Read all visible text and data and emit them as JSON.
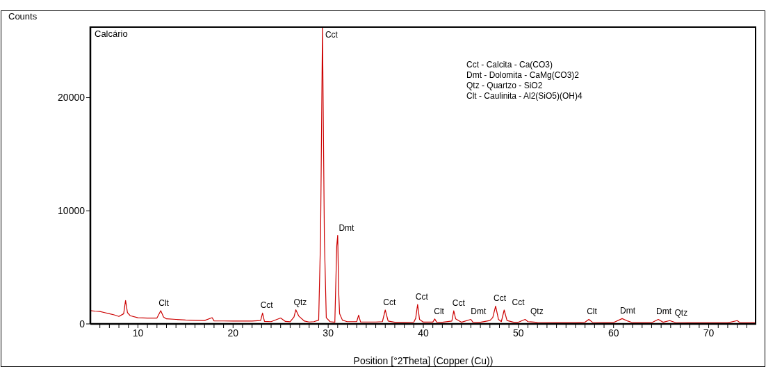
{
  "chart_data": {
    "type": "line",
    "title": "Calcário",
    "xlabel": "Position [°2Theta] (Copper (Cu))",
    "ylabel": "Counts",
    "xlim": [
      5,
      75
    ],
    "ylim": [
      0,
      26300
    ],
    "xticks": [
      {
        "value": 6,
        "label": null
      },
      {
        "value": 7,
        "label": null
      },
      {
        "value": 8,
        "label": null
      },
      {
        "value": 9,
        "label": null
      },
      10,
      {
        "value": 11,
        "label": null
      },
      {
        "value": 12,
        "label": null
      },
      {
        "value": 13,
        "label": null
      },
      {
        "value": 14,
        "label": null
      },
      {
        "value": 15,
        "label": null
      },
      {
        "value": 16,
        "label": null
      },
      {
        "value": 17,
        "label": null
      },
      {
        "value": 18,
        "label": null
      },
      {
        "value": 19,
        "label": null
      },
      20,
      {
        "value": 21,
        "label": null
      },
      {
        "value": 22,
        "label": null
      },
      {
        "value": 23,
        "label": null
      },
      {
        "value": 24,
        "label": null
      },
      {
        "value": 25,
        "label": null
      },
      {
        "value": 26,
        "label": null
      },
      {
        "value": 27,
        "label": null
      },
      {
        "value": 28,
        "label": null
      },
      {
        "value": 29,
        "label": null
      },
      30,
      {
        "value": 31,
        "label": null
      },
      {
        "value": 32,
        "label": null
      },
      {
        "value": 33,
        "label": null
      },
      {
        "value": 34,
        "label": null
      },
      {
        "value": 35,
        "label": null
      },
      {
        "value": 36,
        "label": null
      },
      {
        "value": 37,
        "label": null
      },
      {
        "value": 38,
        "label": null
      },
      {
        "value": 39,
        "label": null
      },
      40,
      {
        "value": 41,
        "label": null
      },
      {
        "value": 42,
        "label": null
      },
      {
        "value": 43,
        "label": null
      },
      {
        "value": 44,
        "label": null
      },
      {
        "value": 45,
        "label": null
      },
      {
        "value": 46,
        "label": null
      },
      {
        "value": 47,
        "label": null
      },
      {
        "value": 48,
        "label": null
      },
      {
        "value": 49,
        "label": null
      },
      50,
      {
        "value": 51,
        "label": null
      },
      {
        "value": 52,
        "label": null
      },
      {
        "value": 53,
        "label": null
      },
      {
        "value": 54,
        "label": null
      },
      {
        "value": 55,
        "label": null
      },
      {
        "value": 56,
        "label": null
      },
      {
        "value": 57,
        "label": null
      },
      {
        "value": 58,
        "label": null
      },
      {
        "value": 59,
        "label": null
      },
      60,
      {
        "value": 61,
        "label": null
      },
      {
        "value": 62,
        "label": null
      },
      {
        "value": 63,
        "label": null
      },
      {
        "value": 64,
        "label": null
      },
      {
        "value": 65,
        "label": null
      },
      {
        "value": 66,
        "label": null
      },
      {
        "value": 67,
        "label": null
      },
      {
        "value": 68,
        "label": null
      },
      {
        "value": 69,
        "label": null
      },
      70,
      {
        "value": 71,
        "label": null
      },
      {
        "value": 72,
        "label": null
      },
      {
        "value": 73,
        "label": null
      },
      {
        "value": 74,
        "label": null
      }
    ],
    "yticks": [
      0,
      10000,
      20000
    ],
    "grid": false,
    "legend": false,
    "marker": "none",
    "line_style": "solid",
    "series": [
      {
        "color": "#cc0000",
        "x": [
          5,
          5.5,
          6,
          6.5,
          7,
          7.5,
          8,
          8.5,
          8.7,
          8.9,
          9.2,
          10,
          11,
          12,
          12.4,
          12.7,
          13,
          14,
          15,
          16,
          17,
          17.8,
          18,
          19,
          20,
          21,
          22,
          22.9,
          23.1,
          23.3,
          24,
          25,
          25.5,
          26,
          26.4,
          26.6,
          26.9,
          27.5,
          28,
          28.5,
          29,
          29.2,
          29.4,
          29.6,
          29.8,
          30.2,
          30.7,
          30.9,
          31.0,
          31.1,
          31.2,
          31.5,
          32,
          33,
          33.2,
          33.4,
          34,
          35,
          35.7,
          36.0,
          36.3,
          37,
          38,
          39,
          39.2,
          39.4,
          39.6,
          40,
          41,
          41.2,
          41.4,
          42,
          43,
          43.2,
          43.4,
          44,
          45,
          45.2,
          46,
          47,
          47.3,
          47.6,
          47.9,
          48.2,
          48.5,
          48.8,
          49.5,
          50,
          50.7,
          51,
          52,
          54,
          56,
          57,
          57.4,
          57.8,
          59,
          60,
          60.9,
          61.5,
          62,
          64,
          64.7,
          65.2,
          65.9,
          66.5,
          68,
          70,
          72,
          73,
          73.3,
          75
        ],
        "values": [
          1170,
          1120,
          1100,
          1000,
          900,
          800,
          660,
          900,
          2070,
          1000,
          720,
          550,
          520,
          520,
          1170,
          600,
          450,
          400,
          350,
          320,
          300,
          550,
          270,
          260,
          250,
          250,
          250,
          300,
          960,
          220,
          200,
          520,
          220,
          190,
          600,
          1250,
          700,
          250,
          170,
          200,
          330,
          7700,
          26300,
          7550,
          550,
          200,
          150,
          6900,
          7830,
          2900,
          900,
          330,
          200,
          200,
          780,
          180,
          170,
          170,
          200,
          1230,
          250,
          150,
          150,
          160,
          500,
          1720,
          400,
          160,
          160,
          440,
          160,
          150,
          250,
          1160,
          450,
          150,
          400,
          160,
          150,
          300,
          560,
          1570,
          400,
          200,
          1230,
          300,
          150,
          150,
          400,
          200,
          130,
          120,
          120,
          150,
          400,
          130,
          110,
          120,
          470,
          250,
          110,
          110,
          400,
          150,
          290,
          120,
          100,
          100,
          100,
          290,
          100,
          100
        ]
      }
    ],
    "annotations": [
      "Cct - Calcita - Ca(CO3)",
      "Dmt - Dolomita - CaMg(CO3)2",
      "Qtz - Quartzo - SiO2",
      "Clt - Caulinita - Al2(SiO5)(OH)4",
      {
        "text": "Clt",
        "x": 12.4,
        "y": 1170
      },
      {
        "text": "Cct",
        "x": 23.1,
        "y": 960
      },
      {
        "text": "Qtz",
        "x": 26.6,
        "y": 1250
      },
      {
        "text": "Cct",
        "x": 29.4,
        "y": 26300
      },
      {
        "text": "Dmt",
        "x": 31.0,
        "y": 7830
      },
      {
        "text": "Cct",
        "x": 36.0,
        "y": 1230
      },
      {
        "text": "Cct",
        "x": 39.4,
        "y": 1720
      },
      {
        "text": "Clt",
        "x": 41.2,
        "y": 440
      },
      {
        "text": "Cct",
        "x": 43.2,
        "y": 1160
      },
      {
        "text": "Dmt",
        "x": 45,
        "y": 400
      },
      {
        "text": "Cct",
        "x": 47.6,
        "y": 1570
      },
      {
        "text": "Cct",
        "x": 48.5,
        "y": 1230
      },
      {
        "text": "Qtz",
        "x": 50.7,
        "y": 400
      },
      {
        "text": "Clt",
        "x": 57.4,
        "y": 400
      },
      {
        "text": "Dmt",
        "x": 60.9,
        "y": 470
      },
      {
        "text": "Dmt",
        "x": 64.7,
        "y": 400
      },
      {
        "text": "Qtz",
        "x": 65.9,
        "y": 290
      }
    ]
  }
}
